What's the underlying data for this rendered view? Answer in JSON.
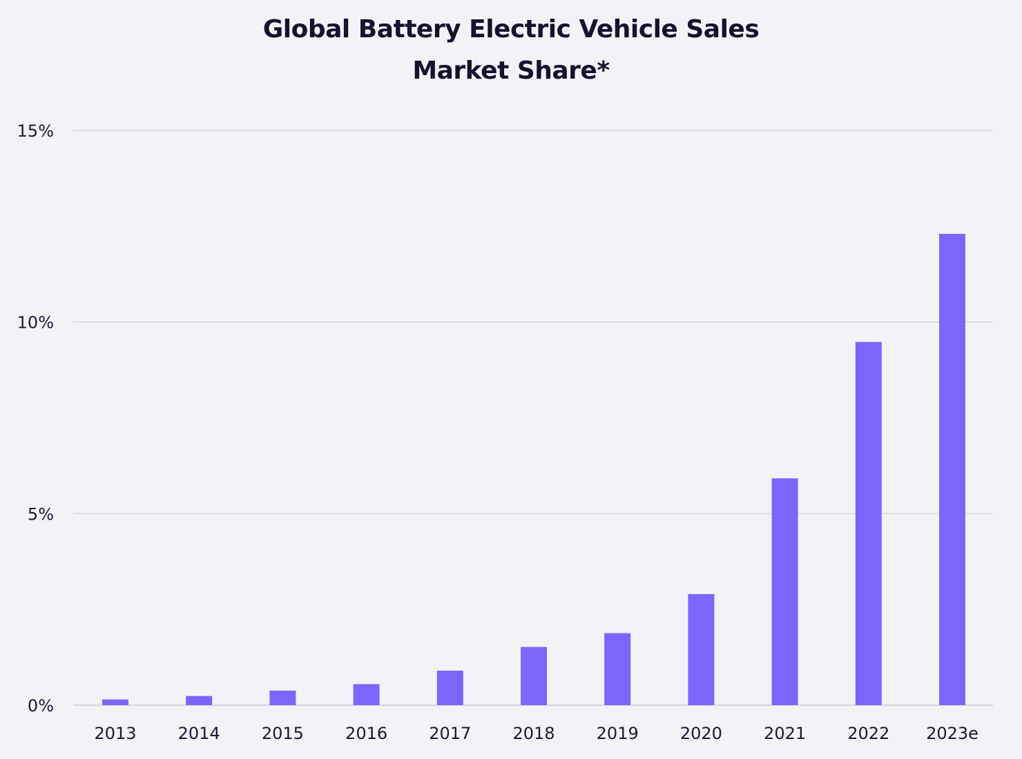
{
  "chart_data": {
    "type": "bar",
    "title_line1": "Global Battery Electric Vehicle Sales",
    "title_line2": "Market Share*",
    "xlabel": "",
    "ylabel": "",
    "categories": [
      "2013",
      "2014",
      "2015",
      "2016",
      "2017",
      "2018",
      "2019",
      "2020",
      "2021",
      "2022",
      "2023e"
    ],
    "values": [
      0.15,
      0.24,
      0.38,
      0.55,
      0.9,
      1.52,
      1.88,
      2.9,
      5.92,
      9.48,
      12.3
    ],
    "ylim": [
      0,
      15
    ],
    "yticks": [
      0,
      5,
      10,
      15
    ],
    "ytick_labels": [
      "0%",
      "5%",
      "10%",
      "15%"
    ],
    "grid": true,
    "bar_color": "#7b66fb",
    "grid_color": "#d5d6de"
  }
}
